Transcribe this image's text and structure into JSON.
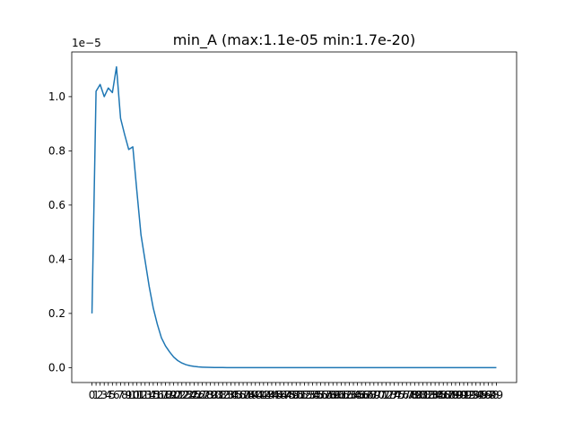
{
  "chart_data": {
    "type": "line",
    "title": "min_A (max:1.1e-05 min:1.7e-20)",
    "xlabel": "",
    "ylabel": "",
    "y_offset_label": "1e−5",
    "y_scale": 1e-05,
    "xlim": [
      -4.95,
      103.95
    ],
    "ylim": [
      -5.5e-07,
      1.165e-05
    ],
    "grid": false,
    "line_color": "#1f77b4",
    "x_ticks": [
      0,
      1,
      2,
      3,
      4,
      5,
      6,
      7,
      8,
      9,
      10,
      11,
      12,
      13,
      14,
      15,
      16,
      17,
      18,
      19,
      20,
      21,
      22,
      23,
      24,
      25,
      26,
      27,
      28,
      29,
      30,
      31,
      32,
      33,
      34,
      35,
      36,
      37,
      38,
      39,
      40,
      41,
      42,
      43,
      44,
      45,
      46,
      47,
      48,
      49,
      50,
      51,
      52,
      53,
      54,
      55,
      56,
      57,
      58,
      59,
      60,
      61,
      62,
      63,
      64,
      65,
      66,
      67,
      68,
      69,
      70,
      71,
      72,
      73,
      74,
      75,
      76,
      77,
      78,
      79,
      80,
      81,
      82,
      83,
      84,
      85,
      86,
      87,
      88,
      89,
      90,
      91,
      92,
      93,
      94,
      95,
      96,
      97,
      98,
      99
    ],
    "y_ticks": [
      0.0,
      2e-06,
      4e-06,
      6e-06,
      8e-06,
      1e-05
    ],
    "y_tick_labels": [
      "0.0",
      "0.2",
      "0.4",
      "0.6",
      "0.8",
      "1.0"
    ],
    "series": [
      {
        "x": [
          0,
          1,
          2,
          3,
          4,
          5,
          6,
          7,
          8,
          9,
          10,
          11,
          12,
          13,
          14,
          15,
          16,
          17,
          18,
          19,
          20,
          21,
          22,
          23,
          24,
          25,
          26,
          27,
          28,
          29,
          30,
          31,
          32,
          33,
          34,
          35,
          36,
          37,
          38,
          39,
          40,
          41,
          42,
          43,
          44,
          45,
          46,
          47,
          48,
          49,
          50,
          51,
          52,
          53,
          54,
          55,
          56,
          57,
          58,
          59,
          60,
          61,
          62,
          63,
          64,
          65,
          66,
          67,
          68,
          69,
          70,
          71,
          72,
          73,
          74,
          75,
          76,
          77,
          78,
          79,
          80,
          81,
          82,
          83,
          84,
          85,
          86,
          87,
          88,
          89,
          90,
          91,
          92,
          93,
          94,
          95,
          96,
          97,
          98,
          99
        ],
        "y": [
          2e-06,
          1.02e-05,
          1.045e-05,
          1e-05,
          1.032e-05,
          1.015e-05,
          1.11e-05,
          9.2e-06,
          8.6e-06,
          8.05e-06,
          8.15e-06,
          6.5e-06,
          4.9e-06,
          3.95e-06,
          3e-06,
          2.2e-06,
          1.6e-06,
          1.1e-06,
          8e-07,
          5.8e-07,
          3.9e-07,
          2.6e-07,
          1.7e-07,
          1.1e-07,
          7e-08,
          4.5e-08,
          2.8e-08,
          1.8e-08,
          1.1e-08,
          7e-09,
          4.5e-09,
          2.8e-09,
          1.8e-09,
          1.1e-09,
          7e-10,
          4.5e-10,
          2.8e-10,
          1.8e-10,
          1.1e-10,
          7e-11,
          4.5e-11,
          2.8e-11,
          1.8e-11,
          1.1e-11,
          7e-12,
          4.5e-12,
          2.8e-12,
          1.8e-12,
          1.1e-12,
          7e-13,
          4.5e-13,
          2.8e-13,
          1.8e-13,
          1.1e-13,
          7e-14,
          4.5e-14,
          2.8e-14,
          1.8e-14,
          1.1e-14,
          7e-15,
          4.5e-15,
          2.8e-15,
          1.8e-15,
          1.1e-15,
          7e-16,
          4.5e-16,
          2.8e-16,
          1.8e-16,
          1.1e-16,
          7e-17,
          4.5e-17,
          2.8e-17,
          1.8e-17,
          1.1e-17,
          7e-18,
          4.5e-18,
          2.8e-18,
          1.8e-18,
          1.1e-18,
          7e-19,
          4.5e-19,
          2.8e-19,
          1.8e-19,
          1.1e-19,
          7e-20,
          4.5e-20,
          2.8e-20,
          1.8e-20,
          1.7e-20,
          1.7e-20,
          1.7e-20,
          1.7e-20,
          1.7e-20,
          1.7e-20,
          1.7e-20,
          1.7e-20,
          1.7e-20,
          1.7e-20,
          1.7e-20,
          1.7e-20
        ]
      }
    ]
  }
}
